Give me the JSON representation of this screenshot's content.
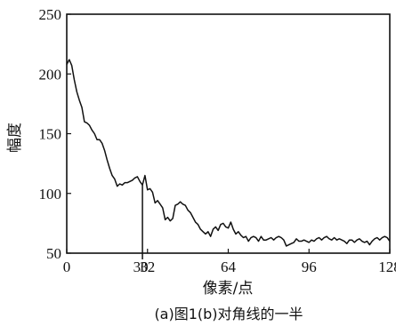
{
  "chart_data": {
    "type": "line",
    "title": "",
    "caption": "(a)图1(b)对角线的一半",
    "xlabel": "像素/点",
    "ylabel": "幅度",
    "xlim": [
      0,
      128
    ],
    "ylim": [
      50,
      250
    ],
    "xticks": [
      0,
      32,
      64,
      96,
      128
    ],
    "yticks": [
      50,
      100,
      150,
      200,
      250
    ],
    "grid": false,
    "legend": "none",
    "line_color": "#111111",
    "markers": [
      {
        "x": 30,
        "label": "30"
      }
    ],
    "series": [
      {
        "x": [
          0,
          1,
          2,
          3,
          4,
          5,
          6,
          7,
          8,
          9,
          10,
          11,
          12,
          13,
          14,
          15,
          16,
          17,
          18,
          19,
          20,
          21,
          22,
          23,
          24,
          25,
          26,
          27,
          28,
          29,
          30,
          31,
          32,
          33,
          34,
          35,
          36,
          37,
          38,
          39,
          40,
          41,
          42,
          43,
          44,
          45,
          46,
          47,
          48,
          49,
          50,
          51,
          52,
          53,
          54,
          55,
          56,
          57,
          58,
          59,
          60,
          61,
          62,
          63,
          64,
          65,
          66,
          67,
          68,
          69,
          70,
          71,
          72,
          73,
          74,
          75,
          76,
          77,
          78,
          79,
          80,
          81,
          82,
          83,
          84,
          85,
          86,
          87,
          88,
          89,
          90,
          91,
          92,
          93,
          94,
          95,
          96,
          97,
          98,
          99,
          100,
          101,
          102,
          103,
          104,
          105,
          106,
          107,
          108,
          109,
          110,
          111,
          112,
          113,
          114,
          115,
          116,
          117,
          118,
          119,
          120,
          121,
          122,
          123,
          124,
          125,
          126,
          127,
          128
        ],
        "values": [
          208,
          212,
          207,
          195,
          185,
          178,
          172,
          160,
          159,
          157,
          153,
          150,
          145,
          145,
          142,
          136,
          128,
          121,
          115,
          112,
          106,
          108,
          107,
          109,
          109,
          110,
          111,
          113,
          114,
          110,
          107,
          115,
          103,
          104,
          101,
          92,
          94,
          91,
          88,
          78,
          80,
          77,
          79,
          90,
          91,
          93,
          91,
          90,
          86,
          84,
          80,
          76,
          74,
          70,
          68,
          66,
          68,
          64,
          70,
          72,
          69,
          74,
          75,
          72,
          71,
          76,
          70,
          66,
          68,
          65,
          63,
          64,
          60,
          63,
          64,
          63,
          60,
          64,
          61,
          61,
          62,
          63,
          61,
          63,
          64,
          63,
          61,
          56,
          57,
          58,
          59,
          62,
          60,
          60,
          61,
          60,
          59,
          61,
          60,
          62,
          63,
          61,
          63,
          64,
          62,
          61,
          63,
          61,
          62,
          61,
          60,
          58,
          61,
          61,
          59,
          61,
          62,
          60,
          59,
          60,
          57,
          60,
          62,
          63,
          61,
          63,
          64,
          63,
          60
        ]
      }
    ]
  }
}
